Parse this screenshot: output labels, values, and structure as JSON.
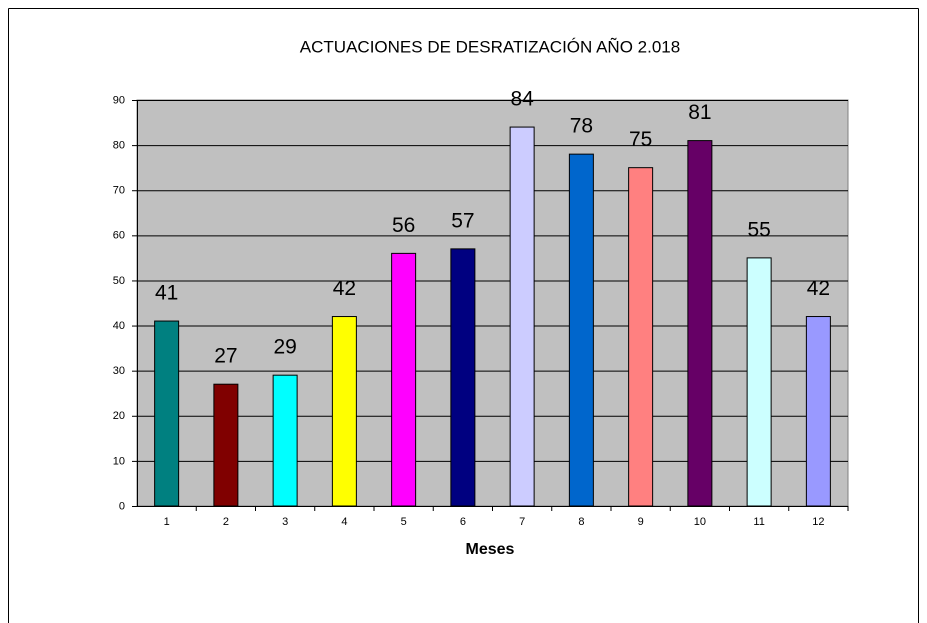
{
  "chart_data": {
    "type": "bar",
    "title": "ACTUACIONES DE DESRATIZACIÓN AÑO 2.018",
    "x_label": "Meses",
    "categories": [
      "1",
      "2",
      "3",
      "4",
      "5",
      "6",
      "7",
      "8",
      "9",
      "10",
      "11",
      "12"
    ],
    "values": [
      41,
      27,
      29,
      42,
      56,
      57,
      84,
      78,
      75,
      81,
      55,
      42
    ],
    "colors": [
      "#008080",
      "#800000",
      "#00ffff",
      "#ffff00",
      "#ff00ff",
      "#000080",
      "#ccccff",
      "#0066cc",
      "#ff8080",
      "#660066",
      "#ccffff",
      "#9999ff"
    ],
    "ylim": [
      0,
      90
    ],
    "yticks": [
      0,
      10,
      20,
      30,
      40,
      50,
      60,
      70,
      80,
      90
    ],
    "grid": true,
    "background": "#c0c0c0"
  }
}
